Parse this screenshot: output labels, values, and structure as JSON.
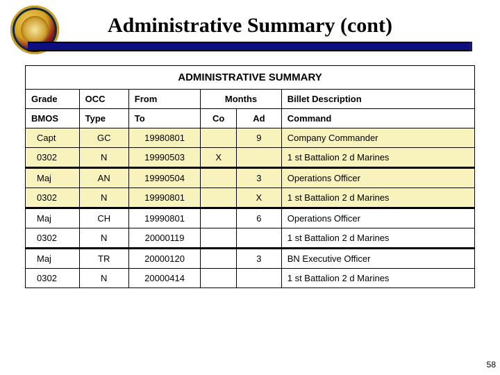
{
  "page": {
    "title": "Administrative Summary (cont)",
    "number": "58"
  },
  "table": {
    "section_title": "ADMINISTRATIVE SUMMARY",
    "headers": {
      "grade": "Grade",
      "occ": "OCC",
      "from": "From",
      "months": "Months",
      "billet": "Billet Description",
      "bmos": "BMOS",
      "type": "Type",
      "to": "To",
      "co": "Co",
      "ad": "Ad",
      "command": "Command"
    },
    "rows": [
      {
        "c0": "Capt",
        "c1": "GC",
        "c2": "19980801",
        "co": "",
        "ad": "9",
        "desc": "Company Commander",
        "hi": true,
        "sep": false
      },
      {
        "c0": "0302",
        "c1": "N",
        "c2": "19990503",
        "co": "X",
        "ad": "",
        "desc": "1 st Battalion 2 d Marines",
        "hi": true,
        "sep": false
      },
      {
        "c0": "Maj",
        "c1": "AN",
        "c2": "19990504",
        "co": "",
        "ad": "3",
        "desc": "Operations Officer",
        "hi": true,
        "sep": true
      },
      {
        "c0": "0302",
        "c1": "N",
        "c2": "19990801",
        "co": "",
        "ad": "X",
        "desc": "1 st Battalion 2 d Marines",
        "hi": true,
        "sep": false
      },
      {
        "c0": "Maj",
        "c1": "CH",
        "c2": "19990801",
        "co": "",
        "ad": "6",
        "desc": "Operations Officer",
        "hi": false,
        "sep": true
      },
      {
        "c0": "0302",
        "c1": "N",
        "c2": "20000119",
        "co": "",
        "ad": "",
        "desc": "1 st Battalion 2 d Marines",
        "hi": false,
        "sep": false
      },
      {
        "c0": "Maj",
        "c1": "TR",
        "c2": "20000120",
        "co": "",
        "ad": "3",
        "desc": "BN Executive Officer",
        "hi": false,
        "sep": true
      },
      {
        "c0": "0302",
        "c1": "N",
        "c2": "20000414",
        "co": "",
        "ad": "",
        "desc": "1 st Battalion 2 d Marines",
        "hi": false,
        "sep": false
      }
    ]
  },
  "style": {
    "highlight_bg": "#f8f2bd",
    "rule_color": "#0e0e80"
  }
}
